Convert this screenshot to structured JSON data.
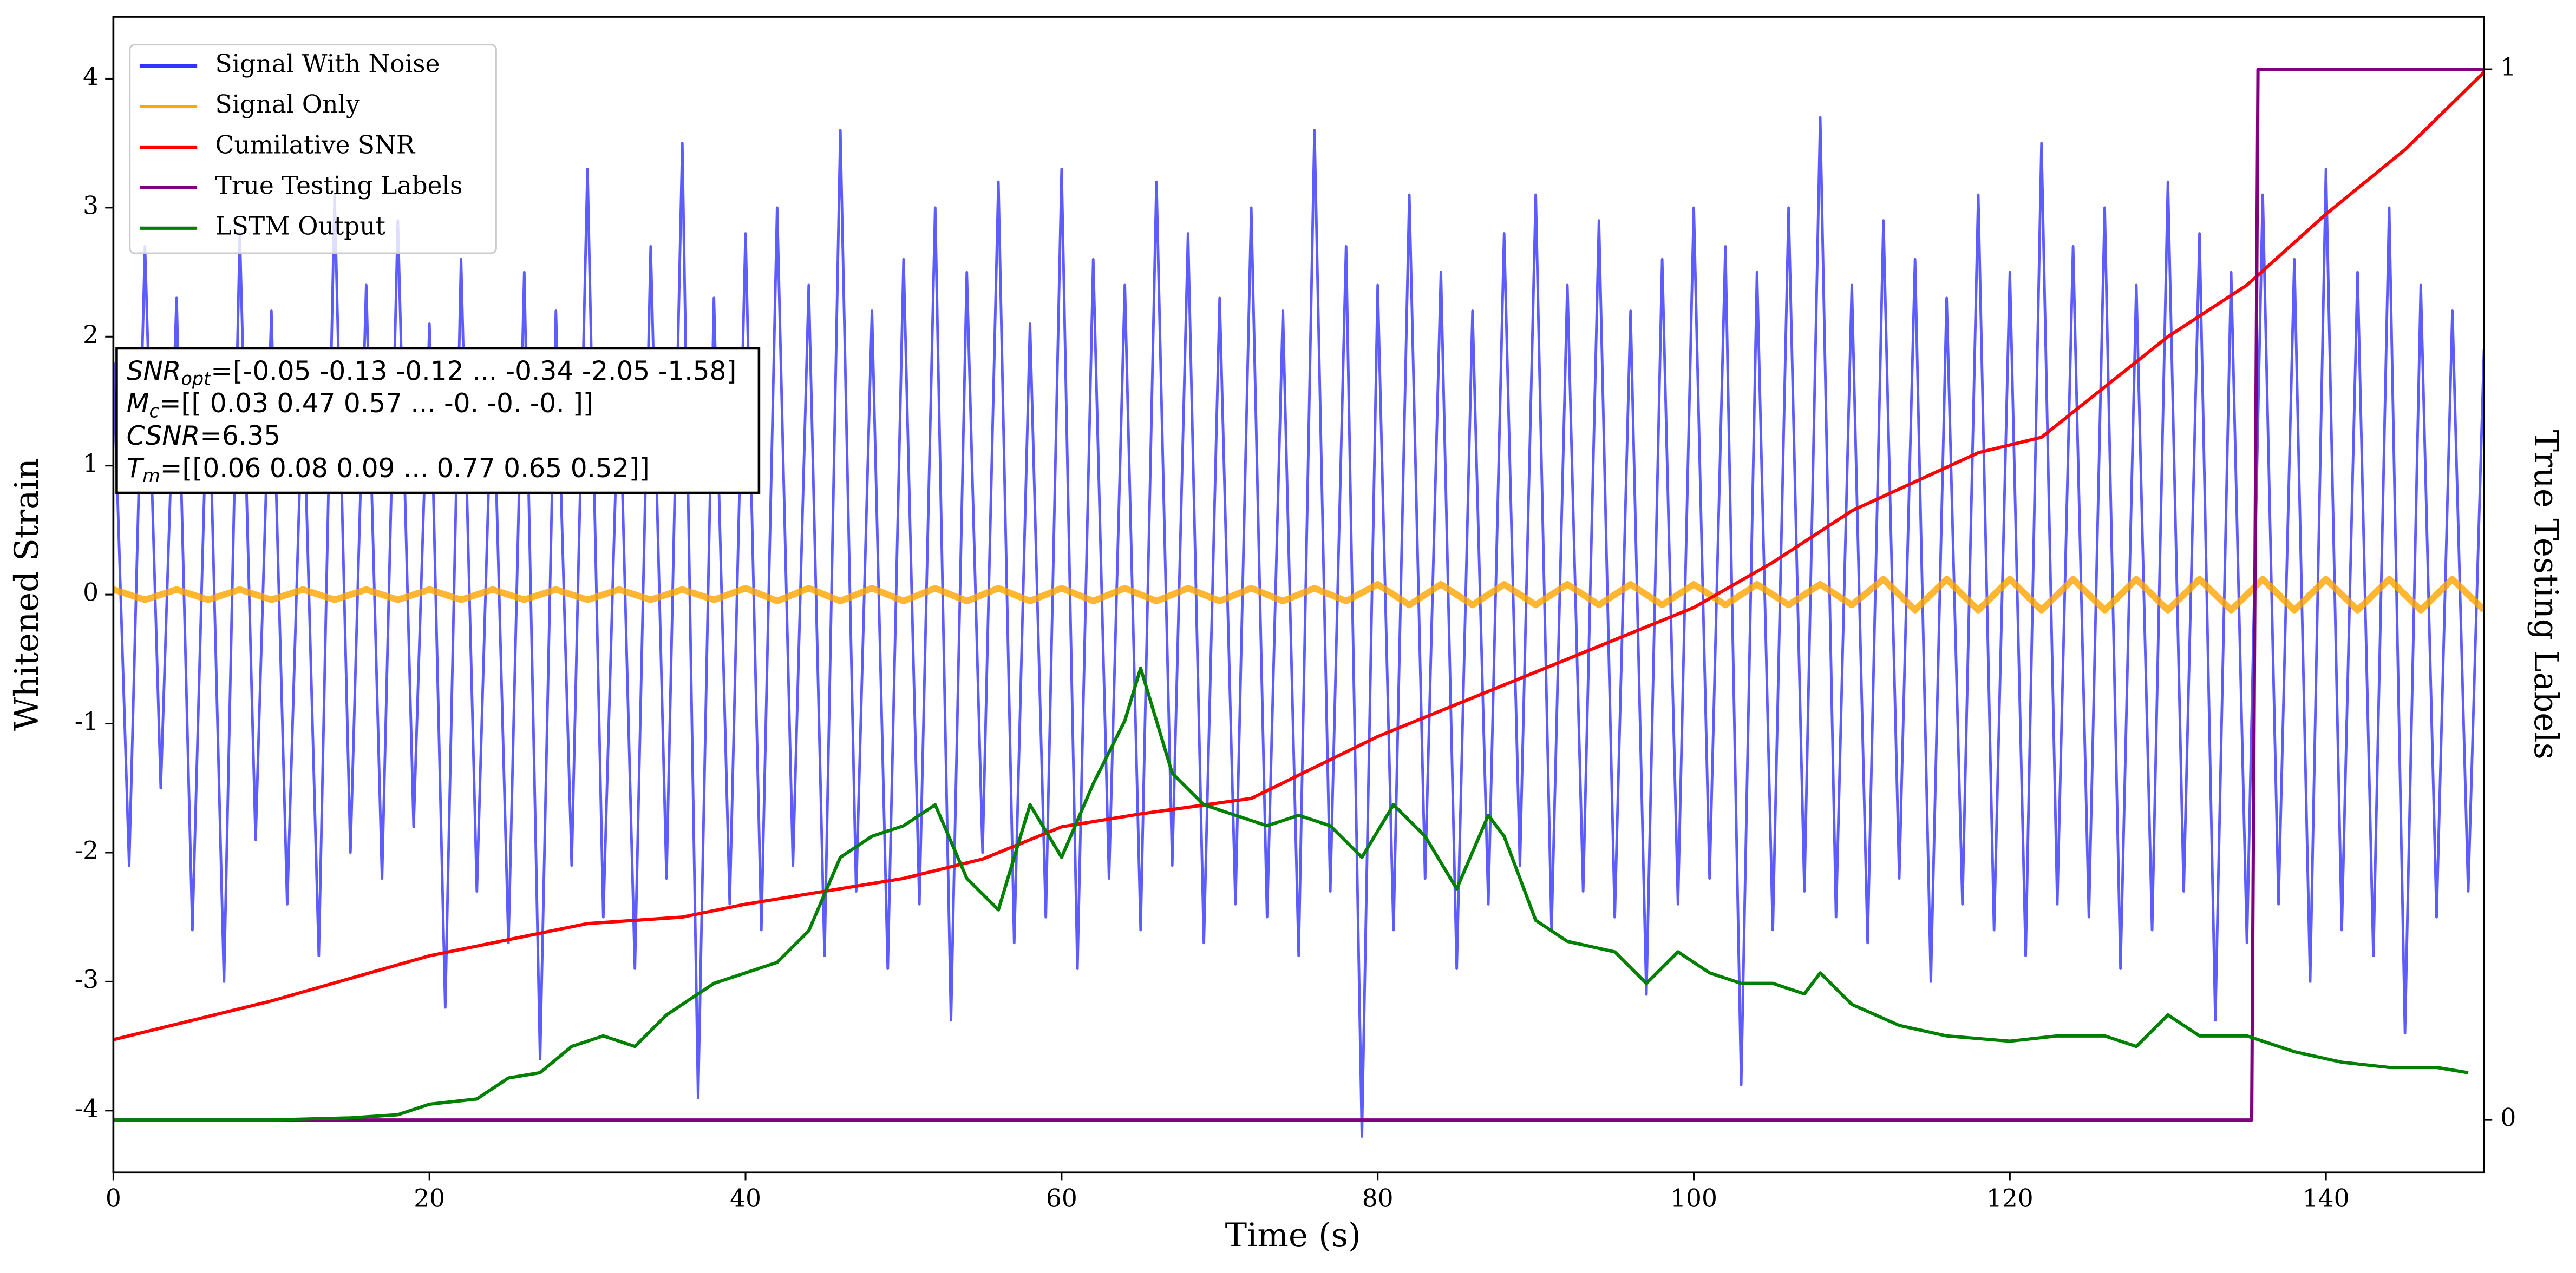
{
  "chart_data": {
    "type": "line",
    "xlabel": "Time (s)",
    "ylabel": "Whitened Strain",
    "y2label": "True Testing Labels",
    "xlim": [
      0,
      150
    ],
    "ylim": [
      -4.48,
      4.48
    ],
    "y2lim": [
      -0.05,
      1.05
    ],
    "xticks": [
      0,
      20,
      40,
      60,
      80,
      100,
      120,
      140
    ],
    "yticks": [
      -4,
      -3,
      -2,
      -1,
      0,
      1,
      2,
      3,
      4
    ],
    "y2ticks": [
      0,
      1
    ],
    "legend": "upper left",
    "series": [
      {
        "name": "Signal With Noise",
        "color": "#3333ff",
        "x": [
          0,
          1,
          2,
          3,
          4,
          5,
          6,
          7,
          8,
          9,
          10,
          11,
          12,
          13,
          14,
          15,
          16,
          17,
          18,
          19,
          20,
          21,
          22,
          23,
          24,
          25,
          26,
          27,
          28,
          29,
          30,
          31,
          32,
          33,
          34,
          35,
          36,
          37,
          38,
          39,
          40,
          41,
          42,
          43,
          44,
          45,
          46,
          47,
          48,
          49,
          50,
          51,
          52,
          53,
          54,
          55,
          56,
          57,
          58,
          59,
          60,
          61,
          62,
          63,
          64,
          65,
          66,
          67,
          68,
          69,
          70,
          71,
          72,
          73,
          74,
          75,
          76,
          77,
          78,
          79,
          80,
          81,
          82,
          83,
          84,
          85,
          86,
          87,
          88,
          89,
          90,
          91,
          92,
          93,
          94,
          95,
          96,
          97,
          98,
          99,
          100,
          101,
          102,
          103,
          104,
          105,
          106,
          107,
          108,
          109,
          110,
          111,
          112,
          113,
          114,
          115,
          116,
          117,
          118,
          119,
          120,
          121,
          122,
          123,
          124,
          125,
          126,
          127,
          128,
          129,
          130,
          131,
          132,
          133,
          134,
          135,
          136,
          137,
          138,
          139,
          140,
          141,
          142,
          143,
          144,
          145,
          146,
          147,
          148,
          149,
          150
        ],
        "values": [
          1.8,
          -2.1,
          2.7,
          -1.5,
          2.3,
          -2.6,
          1.9,
          -3.0,
          2.8,
          -1.9,
          2.2,
          -2.4,
          1.7,
          -2.8,
          3.1,
          -2.0,
          2.4,
          -2.2,
          2.9,
          -1.8,
          2.1,
          -3.2,
          2.6,
          -2.3,
          1.9,
          -2.7,
          2.5,
          -3.6,
          2.2,
          -2.1,
          3.3,
          -2.5,
          1.8,
          -2.9,
          2.7,
          -2.2,
          3.5,
          -3.9,
          2.3,
          -2.4,
          2.8,
          -2.6,
          3.0,
          -2.1,
          2.4,
          -2.8,
          3.6,
          -2.3,
          2.2,
          -2.9,
          2.6,
          -2.4,
          3.0,
          -3.3,
          2.5,
          -2.0,
          3.2,
          -2.7,
          2.1,
          -2.5,
          3.3,
          -2.9,
          2.6,
          -2.2,
          2.4,
          -2.6,
          3.2,
          -2.1,
          2.8,
          -2.7,
          2.3,
          -2.4,
          3.0,
          -2.5,
          2.2,
          -2.8,
          3.6,
          -2.3,
          2.7,
          -4.2,
          2.4,
          -2.6,
          3.1,
          -2.2,
          2.5,
          -2.9,
          2.2,
          -2.4,
          2.8,
          -2.1,
          3.1,
          -2.6,
          2.4,
          -2.3,
          2.9,
          -2.5,
          2.2,
          -3.1,
          2.6,
          -2.4,
          3.0,
          -2.2,
          2.7,
          -3.8,
          2.5,
          -2.6,
          3.0,
          -2.3,
          3.7,
          -2.5,
          2.4,
          -2.7,
          2.9,
          -2.2,
          2.6,
          -3.0,
          2.3,
          -2.4,
          3.1,
          -2.6,
          2.5,
          -2.8,
          3.5,
          -2.4,
          2.7,
          -2.5,
          3.0,
          -2.9,
          2.4,
          -2.6,
          3.2,
          -2.3,
          2.8,
          -3.3,
          2.5,
          -2.7,
          3.1,
          -2.4,
          2.6,
          -3.0,
          3.3,
          -2.6,
          2.5,
          -2.8,
          3.0,
          -3.4,
          2.4,
          -2.5,
          2.2,
          -2.3,
          1.9
        ]
      },
      {
        "name": "Signal Only",
        "color": "#ffa500",
        "x": [
          0,
          2,
          4,
          6,
          8,
          10,
          12,
          14,
          16,
          18,
          20,
          22,
          24,
          26,
          28,
          30,
          32,
          34,
          36,
          38,
          40,
          42,
          44,
          46,
          48,
          50,
          52,
          54,
          56,
          58,
          60,
          62,
          64,
          66,
          68,
          70,
          72,
          74,
          76,
          78,
          80,
          82,
          84,
          86,
          88,
          90,
          92,
          94,
          96,
          98,
          100,
          102,
          104,
          106,
          108,
          110,
          112,
          114,
          116,
          118,
          120,
          122,
          124,
          126,
          128,
          130,
          132,
          134,
          136,
          138,
          140,
          142,
          144,
          146,
          148,
          150
        ],
        "values": [
          0.04,
          -0.04,
          0.04,
          -0.04,
          0.04,
          -0.04,
          0.04,
          -0.04,
          0.04,
          -0.04,
          0.04,
          -0.04,
          0.04,
          -0.04,
          0.04,
          -0.04,
          0.04,
          -0.04,
          0.04,
          -0.04,
          0.05,
          -0.05,
          0.05,
          -0.05,
          0.05,
          -0.05,
          0.05,
          -0.05,
          0.05,
          -0.05,
          0.05,
          -0.05,
          0.05,
          -0.05,
          0.05,
          -0.05,
          0.05,
          -0.05,
          0.05,
          -0.05,
          0.08,
          -0.08,
          0.08,
          -0.08,
          0.08,
          -0.08,
          0.08,
          -0.08,
          0.08,
          -0.08,
          0.08,
          -0.08,
          0.08,
          -0.08,
          0.08,
          -0.08,
          0.12,
          -0.12,
          0.12,
          -0.12,
          0.12,
          -0.12,
          0.12,
          -0.12,
          0.12,
          -0.12,
          0.12,
          -0.12,
          0.12,
          -0.12,
          0.12,
          -0.12,
          0.12,
          -0.12,
          0.12,
          -0.12
        ]
      },
      {
        "name": "Cumilative SNR",
        "color": "#ff0000",
        "x": [
          0,
          10,
          20,
          30,
          36,
          40,
          45,
          50,
          55,
          60,
          65,
          72,
          80,
          90,
          100,
          105,
          110,
          118,
          122,
          130,
          135,
          140,
          145,
          150
        ],
        "values": [
          -3.45,
          -3.15,
          -2.8,
          -2.55,
          -2.5,
          -2.4,
          -2.3,
          -2.2,
          -2.05,
          -1.8,
          -1.7,
          -1.58,
          -1.1,
          -0.6,
          -0.1,
          0.25,
          0.65,
          1.1,
          1.22,
          2.0,
          2.4,
          2.95,
          3.45,
          4.05
        ]
      },
      {
        "name": "True Testing Labels",
        "color": "#800080",
        "axis": "y2",
        "x": [
          0,
          135.3,
          135.7,
          150
        ],
        "values": [
          0,
          0,
          1,
          1
        ]
      },
      {
        "name": "LSTM Output",
        "color": "#008000",
        "axis": "y2",
        "x": [
          0,
          10,
          15,
          18,
          20,
          23,
          25,
          27,
          29,
          31,
          33,
          35,
          37,
          38,
          40,
          42,
          44,
          46,
          48,
          50,
          52,
          54,
          56,
          58,
          60,
          62,
          63,
          64,
          65,
          66,
          67,
          69,
          71,
          73,
          75,
          77,
          79,
          81,
          83,
          85,
          87,
          88,
          90,
          92,
          95,
          97,
          99,
          101,
          103,
          105,
          107,
          108,
          110,
          113,
          116,
          120,
          123,
          126,
          128,
          130,
          132,
          135,
          138,
          141,
          144,
          147,
          149
        ],
        "values": [
          0,
          0,
          0.002,
          0.005,
          0.015,
          0.02,
          0.04,
          0.045,
          0.07,
          0.08,
          0.07,
          0.1,
          0.12,
          0.13,
          0.14,
          0.15,
          0.18,
          0.25,
          0.27,
          0.28,
          0.3,
          0.23,
          0.2,
          0.3,
          0.25,
          0.32,
          0.35,
          0.38,
          0.43,
          0.38,
          0.33,
          0.3,
          0.29,
          0.28,
          0.29,
          0.28,
          0.25,
          0.3,
          0.27,
          0.22,
          0.29,
          0.27,
          0.19,
          0.17,
          0.16,
          0.13,
          0.16,
          0.14,
          0.13,
          0.13,
          0.12,
          0.14,
          0.11,
          0.09,
          0.08,
          0.075,
          0.08,
          0.08,
          0.07,
          0.1,
          0.08,
          0.08,
          0.065,
          0.055,
          0.05,
          0.05,
          0.045
        ]
      }
    ],
    "annotation": [
      {
        "name": "SNR",
        "sub": "opt",
        "text": "=[-0.05 -0.13 -0.12 ... -0.34 -2.05 -1.58]"
      },
      {
        "name": "M",
        "sub": "c",
        "text": "=[[ 0.03  0.47  0.57 ... -0.   -0.   -0.  ]]"
      },
      {
        "name": "CSNR",
        "sub": null,
        "text": "=6.35"
      },
      {
        "name": "T",
        "sub": "m",
        "text": "=[[0.06 0.08 0.09 ... 0.77 0.65 0.52]]"
      }
    ]
  }
}
